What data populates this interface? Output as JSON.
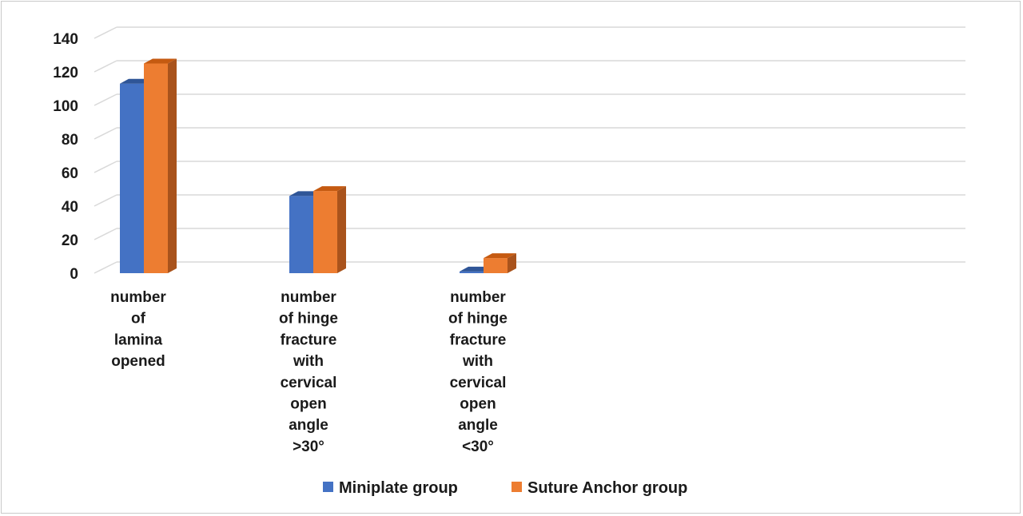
{
  "chart_data": {
    "type": "bar",
    "style": "3d-clustered-column",
    "categories": [
      [
        "number",
        "of",
        "lamina",
        "opened"
      ],
      [
        "number",
        "of hinge",
        "fracture",
        "with",
        "cervical",
        "open",
        "angle",
        ">30°"
      ],
      [
        "number",
        "of hinge",
        "fracture",
        "with",
        "cervical",
        "open",
        "angle",
        "<30°"
      ]
    ],
    "series": [
      {
        "name": "Miniplate group",
        "values": [
          113,
          46,
          1
        ],
        "color": "#4472c4",
        "side_color": "#2f5597",
        "top_color": "#2f5597"
      },
      {
        "name": "Suture Anchor group",
        "values": [
          125,
          49,
          9
        ],
        "color": "#ed7d31",
        "side_color": "#a9531c",
        "top_color": "#c55a11"
      }
    ],
    "yticks": [
      "0",
      "20",
      "40",
      "60",
      "80",
      "100",
      "120",
      "140"
    ],
    "ylim": [
      0,
      140
    ],
    "grid": true,
    "legend": "bottom"
  }
}
